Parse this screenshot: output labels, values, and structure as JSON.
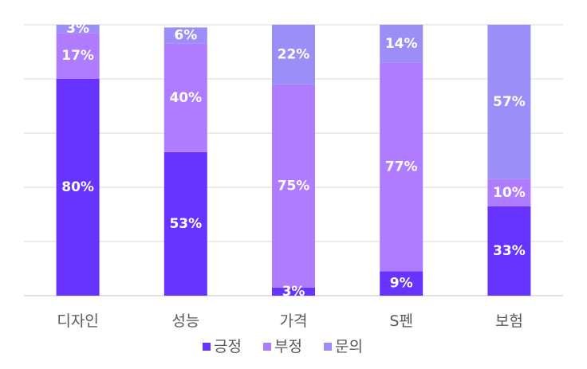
{
  "chart_data": {
    "type": "bar",
    "stacked": true,
    "percent_stacked": true,
    "categories": [
      "디자인",
      "성능",
      "가격",
      "S펜",
      "보험"
    ],
    "series": [
      {
        "name": "긍정",
        "color": "#6633ff",
        "values": [
          80,
          53,
          3,
          9,
          33
        ],
        "labels": [
          "80%",
          "53%",
          "3%",
          "9%",
          "33%"
        ]
      },
      {
        "name": "부정",
        "color": "#b07cff",
        "values": [
          17,
          40,
          75,
          77,
          10
        ],
        "labels": [
          "17%",
          "40%",
          "75%",
          "77%",
          "10%"
        ]
      },
      {
        "name": "문의",
        "color": "#9b8ff7",
        "values": [
          3,
          6,
          22,
          14,
          57
        ],
        "labels": [
          "3%",
          "6%",
          "22%",
          "14%",
          "57%"
        ]
      }
    ],
    "ylim": [
      0,
      100
    ],
    "grid": true,
    "legend_position": "bottom",
    "title": "",
    "xlabel": "",
    "ylabel": ""
  }
}
